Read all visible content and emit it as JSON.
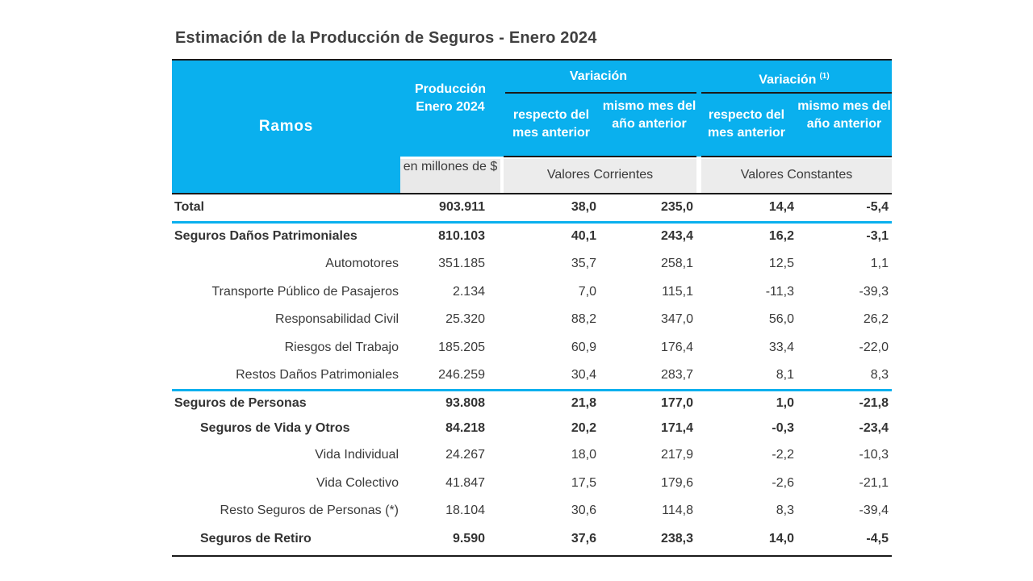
{
  "title": "Estimación de la Producción de Seguros - Enero 2024",
  "header": {
    "ramos": "Ramos",
    "produccion": "Producción Enero 2024",
    "variacion": "Variación",
    "variacion_const": "Variación",
    "variacion_const_note": "(1)",
    "respecto": "respecto del mes anterior",
    "mismo_mes": "mismo mes del año anterior",
    "unit": "en millones de $",
    "valores_corrientes": "Valores Corrientes",
    "valores_constantes": "Valores Constantes"
  },
  "accent_color": "#0ab0ee",
  "rows": [
    {
      "name": "Total",
      "produccion": "903.911",
      "var_mes": "38,0",
      "var_anio": "235,0",
      "const_mes": "14,4",
      "const_anio": "-5,4"
    },
    {
      "name": "Seguros Daños Patrimoniales",
      "produccion": "810.103",
      "var_mes": "40,1",
      "var_anio": "243,4",
      "const_mes": "16,2",
      "const_anio": "-3,1"
    },
    {
      "name": "Automotores",
      "produccion": "351.185",
      "var_mes": "35,7",
      "var_anio": "258,1",
      "const_mes": "12,5",
      "const_anio": "1,1"
    },
    {
      "name": "Transporte Público de Pasajeros",
      "produccion": "2.134",
      "var_mes": "7,0",
      "var_anio": "115,1",
      "const_mes": "-11,3",
      "const_anio": "-39,3"
    },
    {
      "name": "Responsabilidad Civil",
      "produccion": "25.320",
      "var_mes": "88,2",
      "var_anio": "347,0",
      "const_mes": "56,0",
      "const_anio": "26,2"
    },
    {
      "name": "Riesgos del Trabajo",
      "produccion": "185.205",
      "var_mes": "60,9",
      "var_anio": "176,4",
      "const_mes": "33,4",
      "const_anio": "-22,0"
    },
    {
      "name": "Restos Daños Patrimoniales",
      "produccion": "246.259",
      "var_mes": "30,4",
      "var_anio": "283,7",
      "const_mes": "8,1",
      "const_anio": "8,3"
    },
    {
      "name": "Seguros de Personas",
      "produccion": "93.808",
      "var_mes": "21,8",
      "var_anio": "177,0",
      "const_mes": "1,0",
      "const_anio": "-21,8"
    },
    {
      "name": "Seguros de Vida y Otros",
      "produccion": "84.218",
      "var_mes": "20,2",
      "var_anio": "171,4",
      "const_mes": "-0,3",
      "const_anio": "-23,4"
    },
    {
      "name": "Vida Individual",
      "produccion": "24.267",
      "var_mes": "18,0",
      "var_anio": "217,9",
      "const_mes": "-2,2",
      "const_anio": "-10,3"
    },
    {
      "name": "Vida Colectivo",
      "produccion": "41.847",
      "var_mes": "17,5",
      "var_anio": "179,6",
      "const_mes": "-2,6",
      "const_anio": "-21,1"
    },
    {
      "name": "Resto Seguros de Personas (*)",
      "produccion": "18.104",
      "var_mes": "30,6",
      "var_anio": "114,8",
      "const_mes": "8,3",
      "const_anio": "-39,4"
    },
    {
      "name": "Seguros de Retiro",
      "produccion": "9.590",
      "var_mes": "37,6",
      "var_anio": "238,3",
      "const_mes": "14,0",
      "const_anio": "-4,5"
    }
  ]
}
